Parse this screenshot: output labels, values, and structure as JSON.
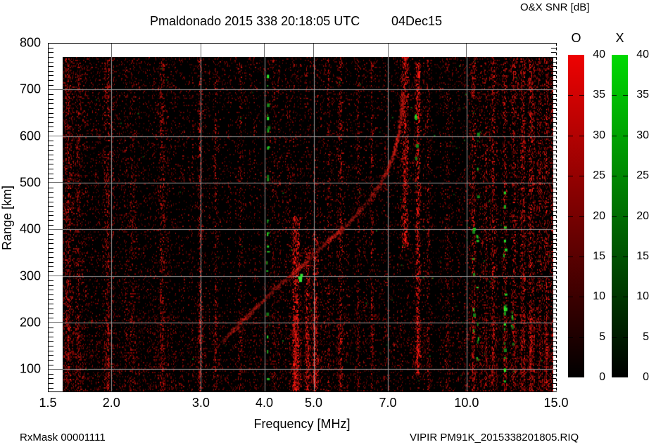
{
  "header": {
    "title": "Pmaldonado 2015 338 20:18:05 UTC",
    "date_label": "04Dec15"
  },
  "footer": {
    "left": "RxMask 00001111",
    "right": "VIPIR  PM91K_2015338201805.RIQ"
  },
  "chart_data": {
    "type": "heatmap",
    "title": "Pmaldonado 2015 338 20:18:05 UTC",
    "date_label": "04Dec15",
    "xlabel": "Frequency [MHz]",
    "ylabel": "Range [km]",
    "x_scale": "log",
    "xlim": [
      1.5,
      15.0
    ],
    "ylim": [
      52,
      800
    ],
    "x_ticks": [
      {
        "v": 1.5,
        "label": "1.5"
      },
      {
        "v": 2.0,
        "label": "2.0"
      },
      {
        "v": 3.0,
        "label": "3.0"
      },
      {
        "v": 4.0,
        "label": "4.0"
      },
      {
        "v": 5.0,
        "label": "5.0"
      },
      {
        "v": 7.0,
        "label": "7.0"
      },
      {
        "v": 10.0,
        "label": "10.0"
      },
      {
        "v": 15.0,
        "label": "15.0"
      }
    ],
    "y_ticks": [
      {
        "v": 800,
        "label": "800"
      },
      {
        "v": 700,
        "label": "700"
      },
      {
        "v": 600,
        "label": "600"
      },
      {
        "v": 500,
        "label": "500"
      },
      {
        "v": 400,
        "label": "400"
      },
      {
        "v": 300,
        "label": "300"
      },
      {
        "v": 200,
        "label": "200"
      },
      {
        "v": 100,
        "label": "100"
      }
    ],
    "y_minor_step_km": 10,
    "grid": true,
    "grid_color": "#9a9a9a",
    "plot_bg": "#000000",
    "colorbars": {
      "title": "O&X SNR [dB]",
      "min": 0,
      "max": 40,
      "tick_step": 5,
      "tick_labels": [
        "40",
        "35",
        "30",
        "25",
        "20",
        "15",
        "10",
        "5",
        "0"
      ],
      "bars": [
        {
          "label": "O",
          "top_color": "#ee0202",
          "bottom_color": "#000000"
        },
        {
          "label": "X",
          "top_color": "#00d902",
          "bottom_color": "#000000"
        }
      ]
    },
    "echo_trace_o_mhz_km": [
      [
        3.3,
        160
      ],
      [
        3.45,
        183
      ],
      [
        3.62,
        205
      ],
      [
        3.8,
        228
      ],
      [
        4.0,
        252
      ],
      [
        4.2,
        274
      ],
      [
        4.42,
        294
      ],
      [
        4.62,
        312
      ],
      [
        4.85,
        333
      ],
      [
        5.08,
        355
      ],
      [
        5.35,
        378
      ],
      [
        5.62,
        398
      ],
      [
        5.9,
        420
      ],
      [
        6.2,
        445
      ],
      [
        6.5,
        472
      ],
      [
        6.78,
        502
      ],
      [
        7.0,
        532
      ],
      [
        7.18,
        565
      ],
      [
        7.32,
        602
      ],
      [
        7.42,
        645
      ],
      [
        7.48,
        692
      ]
    ],
    "trace_hotspots_mhz": [
      [
        4.45,
        4.8,
        2.0
      ],
      [
        5.3,
        5.7,
        1.5
      ],
      [
        6.95,
        7.5,
        1.9
      ],
      [
        3.4,
        3.7,
        1.3
      ]
    ],
    "rfi_stripes_mhz": [
      [
        1.64,
        0.55,
        1.4
      ],
      [
        1.72,
        0.4,
        1.1
      ],
      [
        1.96,
        0.45,
        1.2
      ],
      [
        2.2,
        0.3,
        1.0
      ],
      [
        2.51,
        0.45,
        1.2
      ],
      [
        2.98,
        0.5,
        1.2
      ],
      [
        3.2,
        0.28,
        1.0
      ],
      [
        3.6,
        0.25,
        1.0
      ],
      [
        4.18,
        0.3,
        1.0
      ],
      [
        4.61,
        0.85,
        1.8,
        50,
        430
      ],
      [
        4.86,
        0.6,
        1.4,
        50,
        360
      ],
      [
        5.02,
        0.65,
        1.5,
        50,
        390
      ],
      [
        5.35,
        0.3,
        1.0
      ],
      [
        5.62,
        0.4,
        1.2
      ],
      [
        6.1,
        0.3,
        1.0
      ],
      [
        6.5,
        0.32,
        1.0
      ],
      [
        7.55,
        0.95,
        1.5,
        360,
        780
      ],
      [
        8.0,
        0.75,
        1.3,
        90,
        760
      ],
      [
        8.4,
        0.3,
        1.0
      ],
      [
        9.2,
        0.25,
        1.0
      ],
      [
        10.3,
        0.5,
        1.2
      ],
      [
        10.9,
        0.35,
        1.0
      ],
      [
        11.25,
        0.5,
        1.3
      ],
      [
        11.9,
        0.4,
        1.0
      ],
      [
        12.4,
        0.45,
        1.2
      ],
      [
        12.86,
        0.55,
        1.4
      ],
      [
        13.4,
        0.6,
        1.5
      ],
      [
        13.9,
        0.45,
        1.2
      ],
      [
        14.35,
        0.5,
        1.3
      ],
      [
        14.7,
        0.45,
        1.2
      ]
    ],
    "green_rfi_columns": [
      [
        4.06,
        26,
        70,
        745,
        1.0
      ],
      [
        10.52,
        14,
        120,
        620,
        0.9
      ],
      [
        11.88,
        20,
        60,
        560,
        1.0
      ],
      [
        10.33,
        7,
        150,
        450,
        0.7
      ],
      [
        12.3,
        6,
        100,
        300,
        0.7
      ],
      [
        7.95,
        6,
        480,
        660,
        0.8
      ]
    ],
    "green_blob_mhz_km": [
      4.66,
      300
    ],
    "noise_seed": 1337
  }
}
